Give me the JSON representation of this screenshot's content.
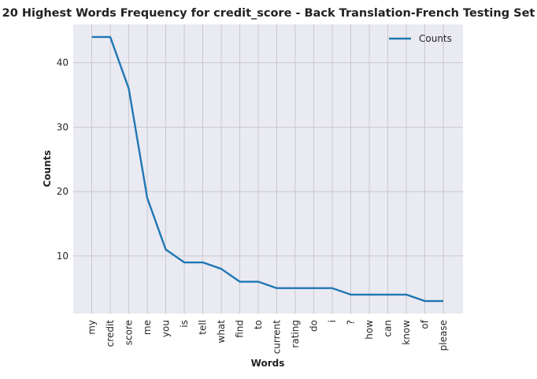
{
  "chart_data": {
    "type": "line",
    "title": "20 Highest Words Frequency for credit_score - Back Translation-French Testing Set",
    "xlabel": "Words",
    "ylabel": "Counts",
    "categories": [
      "my",
      "credit",
      "score",
      "me",
      "you",
      "is",
      "tell",
      "what",
      "find",
      "to",
      "current",
      "rating",
      "do",
      "i",
      "?",
      "how",
      "can",
      "know",
      "of",
      "please"
    ],
    "series": [
      {
        "name": "Counts",
        "values": [
          44,
          44,
          36,
          19,
          11,
          9,
          9,
          8,
          6,
          6,
          5,
          5,
          5,
          5,
          4,
          4,
          4,
          4,
          3,
          3
        ],
        "color": "#1f77b4"
      }
    ],
    "ylim": [
      1.05,
      45.95
    ],
    "yticks": [
      10,
      20,
      30,
      40
    ],
    "grid": true,
    "legend": "top-right",
    "background_color": "#eaeaf2",
    "grid_color": "#c8c8cc"
  }
}
